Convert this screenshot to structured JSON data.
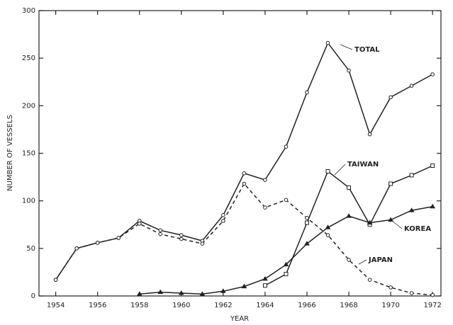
{
  "chart_data": {
    "type": "line",
    "xlabel": "YEAR",
    "ylabel": "NUMBER OF VESSELS",
    "x": [
      1954,
      1955,
      1956,
      1957,
      1958,
      1959,
      1960,
      1961,
      1962,
      1963,
      1964,
      1965,
      1966,
      1967,
      1968,
      1969,
      1970,
      1971,
      1972
    ],
    "series": [
      {
        "name": "TOTAL",
        "color": "#222222",
        "marker": "circle",
        "dashed": false,
        "values": [
          17,
          50,
          56,
          61,
          79,
          69,
          64,
          58,
          85,
          129,
          122,
          157,
          214,
          266,
          237,
          170,
          209,
          221,
          233
        ]
      },
      {
        "name": "TAIWAN",
        "color": "#222222",
        "marker": "square",
        "dashed": false,
        "values": [
          null,
          null,
          null,
          null,
          null,
          null,
          null,
          null,
          null,
          null,
          11,
          23,
          77,
          131,
          114,
          75,
          118,
          127,
          137
        ]
      },
      {
        "name": "KOREA",
        "color": "#222222",
        "marker": "triangle",
        "dashed": false,
        "values": [
          null,
          null,
          null,
          null,
          2,
          4,
          3,
          2,
          5,
          10,
          18,
          33,
          55,
          72,
          84,
          77,
          80,
          90,
          94
        ]
      },
      {
        "name": "JAPAN",
        "color": "#222222",
        "marker": "circle",
        "dashed": true,
        "values": [
          17,
          50,
          56,
          61,
          76,
          65,
          60,
          55,
          79,
          118,
          93,
          101,
          82,
          64,
          38,
          17,
          9,
          3,
          1
        ]
      }
    ],
    "xlim": [
      1953.2,
      1972.4
    ],
    "ylim": [
      0,
      300
    ],
    "xticks": [
      1954,
      1956,
      1958,
      1960,
      1962,
      1964,
      1966,
      1968,
      1970,
      1972
    ],
    "yticks": [
      0,
      50,
      100,
      150,
      200,
      250,
      300
    ]
  }
}
